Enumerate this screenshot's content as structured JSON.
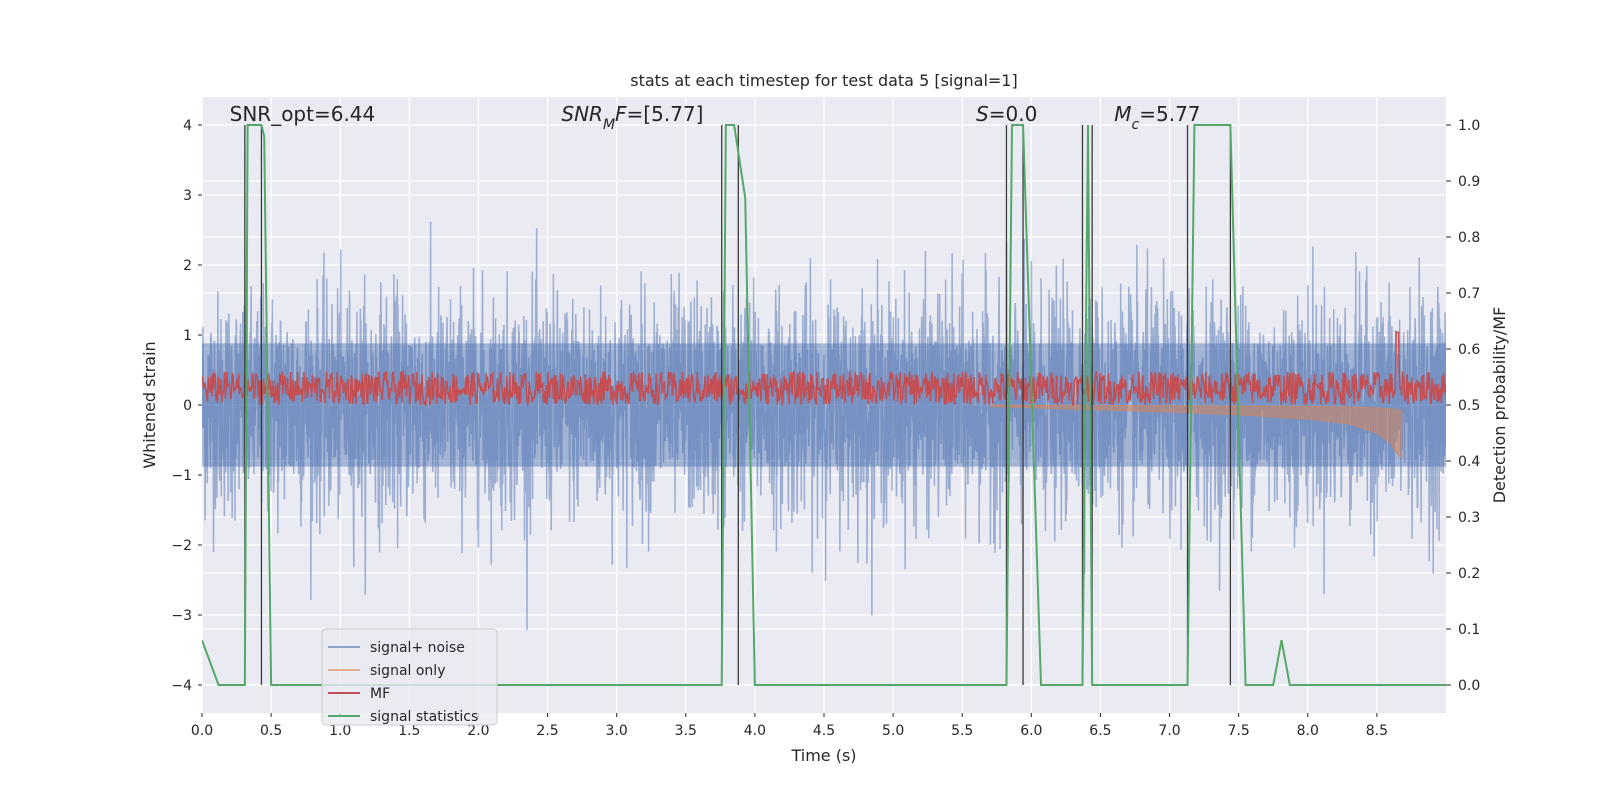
{
  "chart_data": {
    "type": "line",
    "title": "stats at each timestep for test data 5 [signal=1]",
    "xlabel": "Time (s)",
    "ylabel_left": "Whitened strain",
    "ylabel_right": "Detection probability/MF",
    "xlim": [
      0.0,
      9.0
    ],
    "ylim_left": [
      -4.4,
      4.4
    ],
    "ylim_right": [
      -0.05,
      1.05
    ],
    "x_ticks": [
      0.0,
      0.5,
      1.0,
      1.5,
      2.0,
      2.5,
      3.0,
      3.5,
      4.0,
      4.5,
      5.0,
      5.5,
      6.0,
      6.5,
      7.0,
      7.5,
      8.0,
      8.5
    ],
    "x_tick_labels": [
      "0.0",
      "0.5",
      "1.0",
      "1.5",
      "2.0",
      "2.5",
      "3.0",
      "3.5",
      "4.0",
      "4.5",
      "5.0",
      "5.5",
      "6.0",
      "6.5",
      "7.0",
      "7.5",
      "8.0",
      "8.5"
    ],
    "y_ticks_left": [
      4,
      3,
      2,
      1,
      0,
      -1,
      -2,
      -3,
      -4
    ],
    "y_tick_labels_left": [
      "4",
      "3",
      "2",
      "1",
      "0",
      "−1",
      "−2",
      "−3",
      "−4"
    ],
    "y_ticks_right": [
      1.0,
      0.9,
      0.8,
      0.7,
      0.6,
      0.5,
      0.4,
      0.3,
      0.2,
      0.1,
      0.0
    ],
    "y_tick_labels_right": [
      "1.0",
      "0.9",
      "0.8",
      "0.7",
      "0.6",
      "0.5",
      "0.4",
      "0.3",
      "0.2",
      "0.1",
      "0.0"
    ],
    "grid": true,
    "legend_placement": "lower-left",
    "annotations": [
      {
        "main": "SNR_opt=6.44",
        "x": 0.2,
        "y": 4.1
      },
      {
        "main": "SNR",
        "sub": "M",
        "tail": "F=[5.77]",
        "italic": true,
        "x": 2.6,
        "y": 4.1
      },
      {
        "main": "S",
        "tail": "=0.0",
        "italic": true,
        "x": 5.6,
        "y": 4.1
      },
      {
        "main": "M",
        "sub": "c",
        "tail": "=5.77",
        "italic": true,
        "x": 6.6,
        "y": 4.1
      }
    ],
    "vlines_x": [
      0.31,
      0.43,
      3.76,
      3.88,
      5.82,
      5.94,
      6.37,
      6.44,
      7.13,
      7.44
    ],
    "vline_ylim": [
      -4.0,
      4.0
    ],
    "series": [
      {
        "name": "signal+ noise",
        "axis": "left",
        "color": "#4c72b0",
        "opacity": 0.5,
        "x_range": [
          0.0,
          9.0
        ],
        "band_rms": 0.8,
        "typical_range": [
          -1.6,
          1.6
        ],
        "peak_range": [
          -3.7,
          3.7
        ]
      },
      {
        "name": "signal only",
        "axis": "left",
        "color": "#dd8452",
        "opacity": 0.5,
        "x": [
          5.7,
          6.0,
          6.5,
          7.0,
          7.5,
          8.0,
          8.3,
          8.5,
          8.6,
          8.65,
          8.68
        ],
        "amplitude": [
          0.02,
          0.04,
          0.07,
          0.1,
          0.14,
          0.2,
          0.27,
          0.4,
          0.55,
          0.7,
          0.75
        ]
      },
      {
        "name": "MF",
        "axis": "right",
        "color": "#c44e52",
        "baseline": 0.53,
        "spread": 0.03,
        "peak": {
          "x": 8.65,
          "y": 0.63
        },
        "x_range": [
          0.0,
          9.0
        ]
      },
      {
        "name": "signal statistics",
        "axis": "right",
        "color": "#55a868",
        "x": [
          0.0,
          0.12,
          0.31,
          0.33,
          0.43,
          0.45,
          0.5,
          3.76,
          3.79,
          3.85,
          3.93,
          4.0,
          5.82,
          5.86,
          5.94,
          6.07,
          6.37,
          6.41,
          6.44,
          7.13,
          7.18,
          7.44,
          7.55,
          7.75,
          7.81,
          7.87,
          8.0,
          9.0
        ],
        "y": [
          0.08,
          0.0,
          0.0,
          1.0,
          1.0,
          0.98,
          0.0,
          0.0,
          1.0,
          1.0,
          0.87,
          0.0,
          0.0,
          1.0,
          1.0,
          0.0,
          0.0,
          1.0,
          0.0,
          0.0,
          1.0,
          1.0,
          0.0,
          0.0,
          0.08,
          0.0,
          0.0,
          0.0
        ]
      }
    ]
  }
}
